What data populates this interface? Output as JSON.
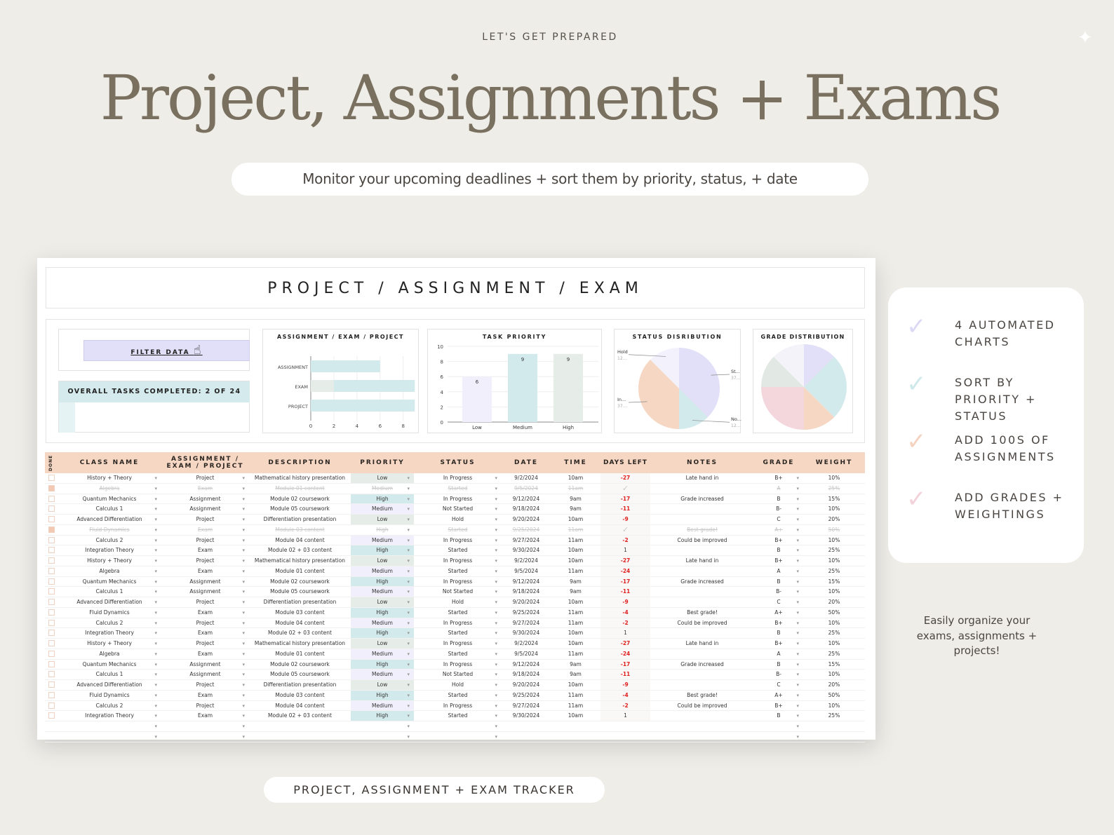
{
  "hero": {
    "kicker": "LET'S GET PREPARED",
    "headline": "Project, Assignments + Exams",
    "subtitle": "Monitor your upcoming deadlines + sort them by priority, status, + date",
    "footer": "PROJECT, ASSIGNMENT + EXAM TRACKER"
  },
  "sheet": {
    "title": "PROJECT / ASSIGNMENT / EXAM",
    "filter_label": "FILTER DATA",
    "tasks_completed": "OVERALL TASKS COMPLETED: 2 OF 24",
    "tasks_progress": 0.083
  },
  "chart_data": [
    {
      "type": "bar",
      "orientation": "horizontal",
      "title": "ASSIGNMENT / EXAM / PROJECT",
      "categories": [
        "ASSIGNMENT",
        "EXAM",
        "PROJECT"
      ],
      "series": [
        {
          "values": [
            0,
            2,
            0
          ],
          "color": "#e6ece7"
        },
        {
          "values": [
            6,
            7,
            9
          ],
          "color": "#d3eaec"
        }
      ],
      "xlim": [
        0,
        9
      ],
      "xticks": [
        0,
        2,
        4,
        6,
        8
      ]
    },
    {
      "type": "bar",
      "title": "TASK PRIORITY",
      "categories": [
        "Low",
        "Medium",
        "High"
      ],
      "values": [
        6,
        9,
        9
      ],
      "colors": [
        "#f1effc",
        "#d3eaec",
        "#e6ece7"
      ],
      "ylim": [
        0,
        10
      ],
      "yticks": [
        0,
        2,
        4,
        6,
        8,
        10
      ]
    },
    {
      "type": "pie",
      "title": "STATUS DISRIBUTION",
      "slices": [
        {
          "label": "St...",
          "value_label": "37...",
          "value": 37.5,
          "color": "#e2e0f8"
        },
        {
          "label": "No...",
          "value_label": "12...",
          "value": 12.5,
          "color": "#d3eaec"
        },
        {
          "label": "In...",
          "value_label": "37...",
          "value": 37.5,
          "color": "#f6d7c4"
        },
        {
          "label": "Hold",
          "value_label": "12...",
          "value": 12.5,
          "color": "#f3f1fb"
        }
      ]
    },
    {
      "type": "pie",
      "title": "GRADE DISTRIBUTION",
      "slices": [
        {
          "value": 12.5,
          "color": "#e2e0f8"
        },
        {
          "value": 25,
          "color": "#d3eaec"
        },
        {
          "value": 12.5,
          "color": "#f6d7c4"
        },
        {
          "value": 25,
          "color": "#f3d7dd"
        },
        {
          "value": 12.5,
          "color": "#e2e9e4"
        },
        {
          "value": 12.5,
          "color": "#f4f3fa"
        }
      ]
    }
  ],
  "table": {
    "headers": [
      "DONE",
      "CLASS NAME",
      "ASSIGNMENT / EXAM / PROJECT",
      "DESCRIPTION",
      "PRIORITY",
      "STATUS",
      "DATE",
      "TIME",
      "DAYS LEFT",
      "NOTES",
      "GRADE",
      "WEIGHT"
    ],
    "rows": [
      {
        "done": false,
        "cls": "History + Theory",
        "type": "Project",
        "desc": "Mathematical history presentation",
        "priority": "Low",
        "status": "In Progress",
        "date": "9/2/2024",
        "time": "10am",
        "days": "-27",
        "notes": "Late hand in",
        "grade": "B+",
        "weight": "10%"
      },
      {
        "done": true,
        "cls": "Algebra",
        "type": "Exam",
        "desc": "Module 01 content",
        "priority": "Medium",
        "status": "Started",
        "date": "9/5/2024",
        "time": "11am",
        "days": "✓",
        "notes": "",
        "grade": "A",
        "weight": "25%"
      },
      {
        "done": false,
        "cls": "Quantum Mechanics",
        "type": "Assignment",
        "desc": "Module 02 coursework",
        "priority": "High",
        "status": "In Progress",
        "date": "9/12/2024",
        "time": "9am",
        "days": "-17",
        "notes": "Grade increased",
        "grade": "B",
        "weight": "15%"
      },
      {
        "done": false,
        "cls": "Calculus 1",
        "type": "Assignment",
        "desc": "Module 05 coursework",
        "priority": "Medium",
        "status": "Not Started",
        "date": "9/18/2024",
        "time": "9am",
        "days": "-11",
        "notes": "",
        "grade": "B-",
        "weight": "10%"
      },
      {
        "done": false,
        "cls": "Advanced Differentiation",
        "type": "Project",
        "desc": "Differentiation presentation",
        "priority": "Low",
        "status": "Hold",
        "date": "9/20/2024",
        "time": "10am",
        "days": "-9",
        "notes": "",
        "grade": "C",
        "weight": "20%"
      },
      {
        "done": true,
        "cls": "Fluid Dynamics",
        "type": "Exam",
        "desc": "Module 03 content",
        "priority": "High",
        "status": "Started",
        "date": "9/25/2024",
        "time": "11am",
        "days": "✓",
        "notes": "Best grade!",
        "grade": "A+",
        "weight": "50%"
      },
      {
        "done": false,
        "cls": "Calculus 2",
        "type": "Project",
        "desc": "Module 04 content",
        "priority": "Medium",
        "status": "In Progress",
        "date": "9/27/2024",
        "time": "11am",
        "days": "-2",
        "notes": "Could be improved",
        "grade": "B+",
        "weight": "10%"
      },
      {
        "done": false,
        "cls": "Integration Theory",
        "type": "Exam",
        "desc": "Module 02 + 03 content",
        "priority": "High",
        "status": "Started",
        "date": "9/30/2024",
        "time": "10am",
        "days": "1",
        "notes": "",
        "grade": "B",
        "weight": "25%"
      },
      {
        "done": false,
        "cls": "History + Theory",
        "type": "Project",
        "desc": "Mathematical history presentation",
        "priority": "Low",
        "status": "In Progress",
        "date": "9/2/2024",
        "time": "10am",
        "days": "-27",
        "notes": "Late hand in",
        "grade": "B+",
        "weight": "10%"
      },
      {
        "done": false,
        "cls": "Algebra",
        "type": "Exam",
        "desc": "Module 01 content",
        "priority": "Medium",
        "status": "Started",
        "date": "9/5/2024",
        "time": "11am",
        "days": "-24",
        "notes": "",
        "grade": "A",
        "weight": "25%"
      },
      {
        "done": false,
        "cls": "Quantum Mechanics",
        "type": "Assignment",
        "desc": "Module 02 coursework",
        "priority": "High",
        "status": "In Progress",
        "date": "9/12/2024",
        "time": "9am",
        "days": "-17",
        "notes": "Grade increased",
        "grade": "B",
        "weight": "15%"
      },
      {
        "done": false,
        "cls": "Calculus 1",
        "type": "Assignment",
        "desc": "Module 05 coursework",
        "priority": "Medium",
        "status": "Not Started",
        "date": "9/18/2024",
        "time": "9am",
        "days": "-11",
        "notes": "",
        "grade": "B-",
        "weight": "10%"
      },
      {
        "done": false,
        "cls": "Advanced Differentiation",
        "type": "Project",
        "desc": "Differentiation presentation",
        "priority": "Low",
        "status": "Hold",
        "date": "9/20/2024",
        "time": "10am",
        "days": "-9",
        "notes": "",
        "grade": "C",
        "weight": "20%"
      },
      {
        "done": false,
        "cls": "Fluid Dynamics",
        "type": "Exam",
        "desc": "Module 03 content",
        "priority": "High",
        "status": "Started",
        "date": "9/25/2024",
        "time": "11am",
        "days": "-4",
        "notes": "Best grade!",
        "grade": "A+",
        "weight": "50%"
      },
      {
        "done": false,
        "cls": "Calculus 2",
        "type": "Project",
        "desc": "Module 04 content",
        "priority": "Medium",
        "status": "In Progress",
        "date": "9/27/2024",
        "time": "11am",
        "days": "-2",
        "notes": "Could be improved",
        "grade": "B+",
        "weight": "10%"
      },
      {
        "done": false,
        "cls": "Integration Theory",
        "type": "Exam",
        "desc": "Module 02 + 03 content",
        "priority": "High",
        "status": "Started",
        "date": "9/30/2024",
        "time": "10am",
        "days": "1",
        "notes": "",
        "grade": "B",
        "weight": "25%"
      },
      {
        "done": false,
        "cls": "History + Theory",
        "type": "Project",
        "desc": "Mathematical history presentation",
        "priority": "Low",
        "status": "In Progress",
        "date": "9/2/2024",
        "time": "10am",
        "days": "-27",
        "notes": "Late hand in",
        "grade": "B+",
        "weight": "10%"
      },
      {
        "done": false,
        "cls": "Algebra",
        "type": "Exam",
        "desc": "Module 01 content",
        "priority": "Medium",
        "status": "Started",
        "date": "9/5/2024",
        "time": "11am",
        "days": "-24",
        "notes": "",
        "grade": "A",
        "weight": "25%"
      },
      {
        "done": false,
        "cls": "Quantum Mechanics",
        "type": "Assignment",
        "desc": "Module 02 coursework",
        "priority": "High",
        "status": "In Progress",
        "date": "9/12/2024",
        "time": "9am",
        "days": "-17",
        "notes": "Grade increased",
        "grade": "B",
        "weight": "15%"
      },
      {
        "done": false,
        "cls": "Calculus 1",
        "type": "Assignment",
        "desc": "Module 05 coursework",
        "priority": "Medium",
        "status": "Not Started",
        "date": "9/18/2024",
        "time": "9am",
        "days": "-11",
        "notes": "",
        "grade": "B-",
        "weight": "10%"
      },
      {
        "done": false,
        "cls": "Advanced Differentiation",
        "type": "Project",
        "desc": "Differentiation presentation",
        "priority": "Low",
        "status": "Hold",
        "date": "9/20/2024",
        "time": "10am",
        "days": "-9",
        "notes": "",
        "grade": "C",
        "weight": "20%"
      },
      {
        "done": false,
        "cls": "Fluid Dynamics",
        "type": "Exam",
        "desc": "Module 03 content",
        "priority": "High",
        "status": "Started",
        "date": "9/25/2024",
        "time": "11am",
        "days": "-4",
        "notes": "Best grade!",
        "grade": "A+",
        "weight": "50%"
      },
      {
        "done": false,
        "cls": "Calculus 2",
        "type": "Project",
        "desc": "Module 04 content",
        "priority": "Medium",
        "status": "In Progress",
        "date": "9/27/2024",
        "time": "11am",
        "days": "-2",
        "notes": "Could be improved",
        "grade": "B+",
        "weight": "10%"
      },
      {
        "done": false,
        "cls": "Integration Theory",
        "type": "Exam",
        "desc": "Module 02 + 03 content",
        "priority": "High",
        "status": "Started",
        "date": "9/30/2024",
        "time": "10am",
        "days": "1",
        "notes": "",
        "grade": "B",
        "weight": "25%"
      }
    ]
  },
  "features": [
    {
      "label": "4 AUTOMATED CHARTS",
      "color": "#dcd9f5"
    },
    {
      "label": "SORT BY PRIORITY + STATUS",
      "color": "#cfe8ea"
    },
    {
      "label": "ADD 100S OF ASSIGNMENTS",
      "color": "#f4d3c0"
    },
    {
      "label": "ADD GRADES + WEIGHTINGS",
      "color": "#f3d2da"
    }
  ],
  "note": "Easily organize your exams, assignments + projects!"
}
